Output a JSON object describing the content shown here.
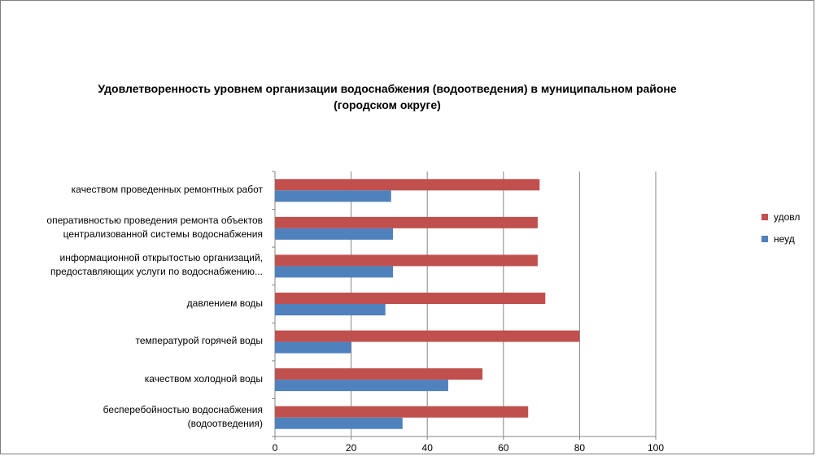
{
  "chart_data": {
    "type": "bar",
    "orientation": "horizontal",
    "title_lines": [
      "Удовлетворенность уровнем организации водоснабжения (водоотведения) в муниципальном районе",
      "(городском округе)"
    ],
    "categories": [
      [
        "качеством  проведенных  ремонтных работ"
      ],
      [
        "оперативностью  проведения  ремонта объектов",
        "централизованной системы водоснабжения"
      ],
      [
        "информационной открытостью организаций,",
        "предоставляющих услуги по водоснабжению..."
      ],
      [
        "давлением  воды"
      ],
      [
        "температурой горячей воды"
      ],
      [
        "качеством  холодной воды"
      ],
      [
        "бесперебойностью  водоснабжения",
        "(водоотведения)"
      ]
    ],
    "series": [
      {
        "name": "удовл",
        "color": "#C0504D",
        "values": [
          69.5,
          69,
          69,
          71,
          80,
          54.5,
          66.5
        ]
      },
      {
        "name": "неуд",
        "color": "#4F81BD",
        "values": [
          30.5,
          31,
          31,
          29,
          20,
          45.5,
          33.5
        ]
      }
    ],
    "xlim": [
      0,
      100
    ],
    "xticks": [
      "0",
      "20",
      "40",
      "60",
      "80",
      "100"
    ],
    "grid": true,
    "legend": "right"
  }
}
